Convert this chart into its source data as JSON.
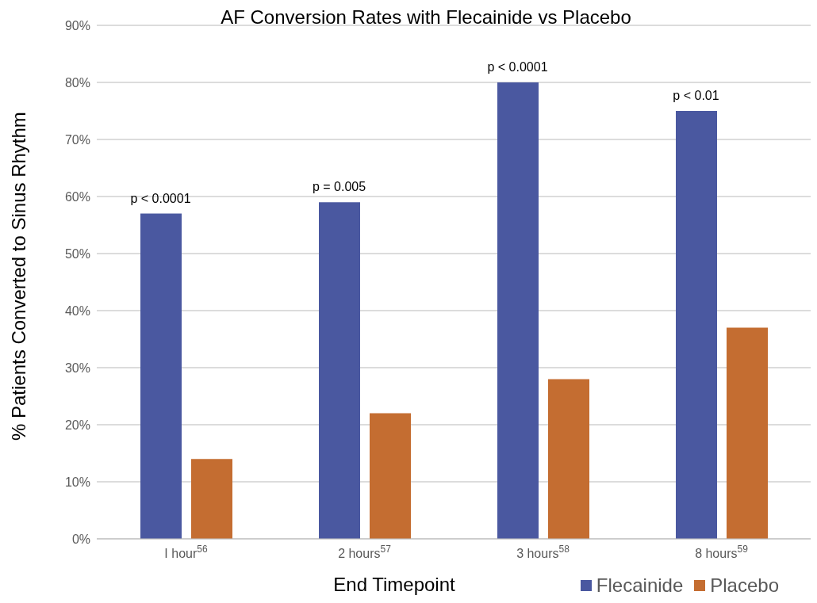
{
  "chart_data": {
    "type": "bar",
    "title": "AF Conversion Rates with Flecainide vs Placebo",
    "xlabel": "End Timepoint",
    "ylabel": "% Patients Converted to Sinus Rhythm",
    "categories": [
      "I hour$^{56}$",
      "2 hours$^{57}$",
      "3 hours$^{58}$",
      "8 hours$^{59}$"
    ],
    "series": [
      {
        "name": "Flecainide",
        "color": "#4a58a0",
        "values": [
          57,
          59,
          80,
          75
        ]
      },
      {
        "name": "Placebo",
        "color": "#c46d31",
        "values": [
          14,
          22,
          28,
          37
        ]
      }
    ],
    "ylim": [
      0,
      90
    ],
    "yticks": [
      {
        "value": 0,
        "label": "0%"
      },
      {
        "value": 10,
        "label": "10%"
      },
      {
        "value": 20,
        "label": "20%"
      },
      {
        "value": 30,
        "label": "30%"
      },
      {
        "value": 40,
        "label": "40%"
      },
      {
        "value": 50,
        "label": "50%"
      },
      {
        "value": 60,
        "label": "60%"
      },
      {
        "value": 70,
        "label": "70%"
      },
      {
        "value": 80,
        "label": "80%"
      },
      {
        "value": 90,
        "label": "90%"
      }
    ],
    "grid": "y",
    "legend": "bottom right",
    "annotations": [
      "p < 0.0001",
      "p = 0.005",
      "p < 0.0001",
      "p < 0.01"
    ]
  }
}
